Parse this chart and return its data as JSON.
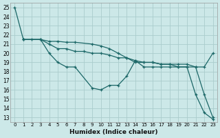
{
  "xlabel": "Humidex (Indice chaleur)",
  "bg_color": "#cce8e8",
  "grid_color": "#aacccc",
  "line_color": "#1a6666",
  "xlim": [
    -0.5,
    23.5
  ],
  "ylim": [
    12.5,
    25.5
  ],
  "xticks": [
    0,
    1,
    2,
    3,
    4,
    5,
    6,
    7,
    8,
    9,
    10,
    11,
    12,
    13,
    14,
    15,
    16,
    17,
    18,
    19,
    20,
    21,
    22,
    23
  ],
  "yticks": [
    13,
    14,
    15,
    16,
    17,
    18,
    19,
    20,
    21,
    22,
    23,
    24,
    25
  ],
  "line1_x": [
    0,
    1,
    2,
    3,
    4,
    5,
    6,
    7,
    8,
    9,
    10,
    11,
    12,
    13,
    14,
    15,
    16,
    17,
    18,
    19,
    20,
    21,
    22,
    23
  ],
  "line1_y": [
    25,
    21.5,
    21.5,
    21.5,
    21.0,
    20.5,
    20.5,
    20.2,
    20.2,
    20.0,
    20.0,
    19.8,
    19.5,
    19.5,
    19.2,
    19.0,
    19.0,
    18.8,
    18.8,
    18.5,
    18.5,
    18.5,
    15.5,
    13.0
  ],
  "line2_x": [
    1,
    3,
    4,
    5,
    6,
    7,
    9,
    10,
    11,
    12,
    13,
    14,
    15,
    16,
    17,
    18,
    19,
    20,
    21,
    22,
    23
  ],
  "line2_y": [
    21.5,
    21.5,
    21.3,
    21.3,
    21.2,
    21.2,
    21.0,
    20.8,
    20.5,
    20.0,
    19.5,
    19.0,
    19.0,
    19.0,
    18.8,
    18.8,
    18.8,
    18.8,
    18.5,
    18.5,
    20.0
  ],
  "line3_x": [
    1,
    3,
    4,
    5,
    6,
    7,
    9,
    10,
    11,
    12,
    13,
    14,
    15,
    16,
    17,
    18,
    19,
    20,
    21,
    22,
    23
  ],
  "line3_y": [
    21.5,
    21.5,
    20.0,
    19.0,
    18.5,
    18.5,
    16.2,
    16.0,
    16.5,
    16.5,
    17.5,
    19.2,
    18.5,
    18.5,
    18.5,
    18.5,
    18.5,
    18.5,
    15.5,
    13.5,
    12.8
  ]
}
